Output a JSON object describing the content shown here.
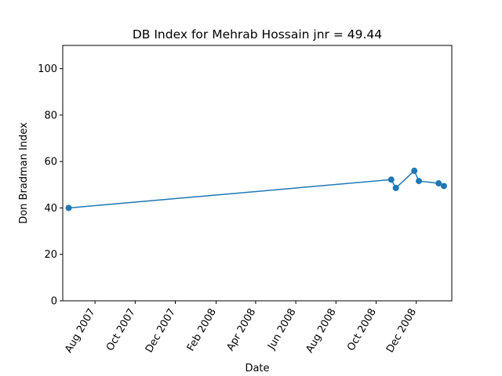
{
  "chart_data": {
    "type": "line",
    "title": "DB Index for Mehrab Hossain jnr = 49.44",
    "xlabel": "Date",
    "ylabel": "Don Bradman Index",
    "x_type": "date",
    "xlim": [
      "2007-06-13",
      "2009-01-24"
    ],
    "ylim": [
      0,
      110
    ],
    "x_ticks": [
      {
        "date": "2007-08-01",
        "label": "Aug 2007"
      },
      {
        "date": "2007-10-01",
        "label": "Oct 2007"
      },
      {
        "date": "2007-12-01",
        "label": "Dec 2007"
      },
      {
        "date": "2008-02-01",
        "label": "Feb 2008"
      },
      {
        "date": "2008-04-01",
        "label": "Apr 2008"
      },
      {
        "date": "2008-06-01",
        "label": "Jun 2008"
      },
      {
        "date": "2008-08-01",
        "label": "Aug 2008"
      },
      {
        "date": "2008-10-01",
        "label": "Oct 2008"
      },
      {
        "date": "2008-12-01",
        "label": "Dec 2008"
      }
    ],
    "y_ticks": [
      0,
      20,
      40,
      60,
      80,
      100
    ],
    "grid": false,
    "series": [
      {
        "color": "#1f77b4",
        "marker": "circle",
        "points": [
          {
            "x": "2007-06-22",
            "y": 40.0
          },
          {
            "x": "2008-10-24",
            "y": 52.2
          },
          {
            "x": "2008-10-31",
            "y": 48.6
          },
          {
            "x": "2008-11-28",
            "y": 56.0
          },
          {
            "x": "2008-12-05",
            "y": 51.6
          },
          {
            "x": "2009-01-04",
            "y": 50.6
          },
          {
            "x": "2009-01-12",
            "y": 49.44
          }
        ]
      }
    ]
  }
}
